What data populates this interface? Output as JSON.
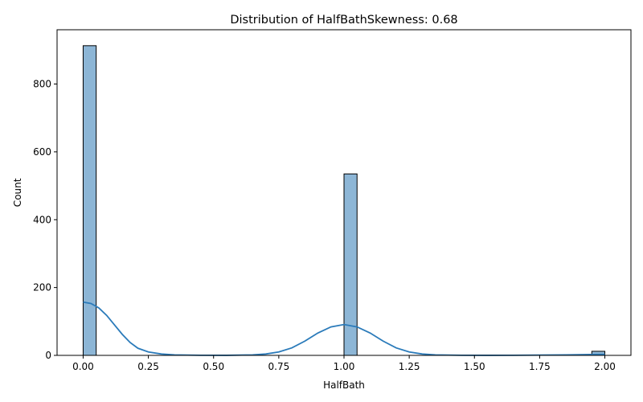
{
  "chart_data": {
    "type": "bar",
    "title": "Distribution of HalfBathSkewness: 0.68",
    "xlabel": "HalfBath",
    "ylabel": "Count",
    "xlim": [
      -0.1,
      2.1
    ],
    "ylim": [
      0,
      960
    ],
    "xticks": [
      "0.00",
      "0.25",
      "0.50",
      "0.75",
      "1.00",
      "1.25",
      "1.50",
      "1.75",
      "2.00"
    ],
    "yticks": [
      "0",
      "200",
      "400",
      "600",
      "800"
    ],
    "bins": [
      {
        "x0": 0.0,
        "x1": 0.05,
        "count": 913
      },
      {
        "x0": 0.95,
        "x1": 1.0,
        "count": 0
      },
      {
        "x0": 1.0,
        "x1": 1.05,
        "count": 535
      },
      {
        "x0": 1.95,
        "x1": 2.0,
        "count": 12
      }
    ],
    "kde": [
      [
        0.0,
        157
      ],
      [
        0.03,
        153
      ],
      [
        0.06,
        140
      ],
      [
        0.09,
        118
      ],
      [
        0.12,
        90
      ],
      [
        0.15,
        62
      ],
      [
        0.18,
        38
      ],
      [
        0.21,
        21
      ],
      [
        0.25,
        10
      ],
      [
        0.3,
        4
      ],
      [
        0.35,
        1.5
      ],
      [
        0.45,
        0.3
      ],
      [
        0.55,
        0.2
      ],
      [
        0.65,
        1.5
      ],
      [
        0.7,
        4
      ],
      [
        0.75,
        10
      ],
      [
        0.8,
        22
      ],
      [
        0.85,
        42
      ],
      [
        0.9,
        66
      ],
      [
        0.95,
        84
      ],
      [
        1.0,
        91
      ],
      [
        1.05,
        84
      ],
      [
        1.1,
        66
      ],
      [
        1.15,
        42
      ],
      [
        1.2,
        22
      ],
      [
        1.25,
        10
      ],
      [
        1.3,
        4
      ],
      [
        1.35,
        1.5
      ],
      [
        1.45,
        0.3
      ],
      [
        1.55,
        0.2
      ],
      [
        1.65,
        0.3
      ],
      [
        1.75,
        0.8
      ],
      [
        1.85,
        1.5
      ],
      [
        1.95,
        2.5
      ],
      [
        2.0,
        3
      ]
    ],
    "bar_color": "#8db6d6",
    "bar_edge": "#000000",
    "line_color": "#2b7bba",
    "grid": false,
    "legend": "none"
  }
}
